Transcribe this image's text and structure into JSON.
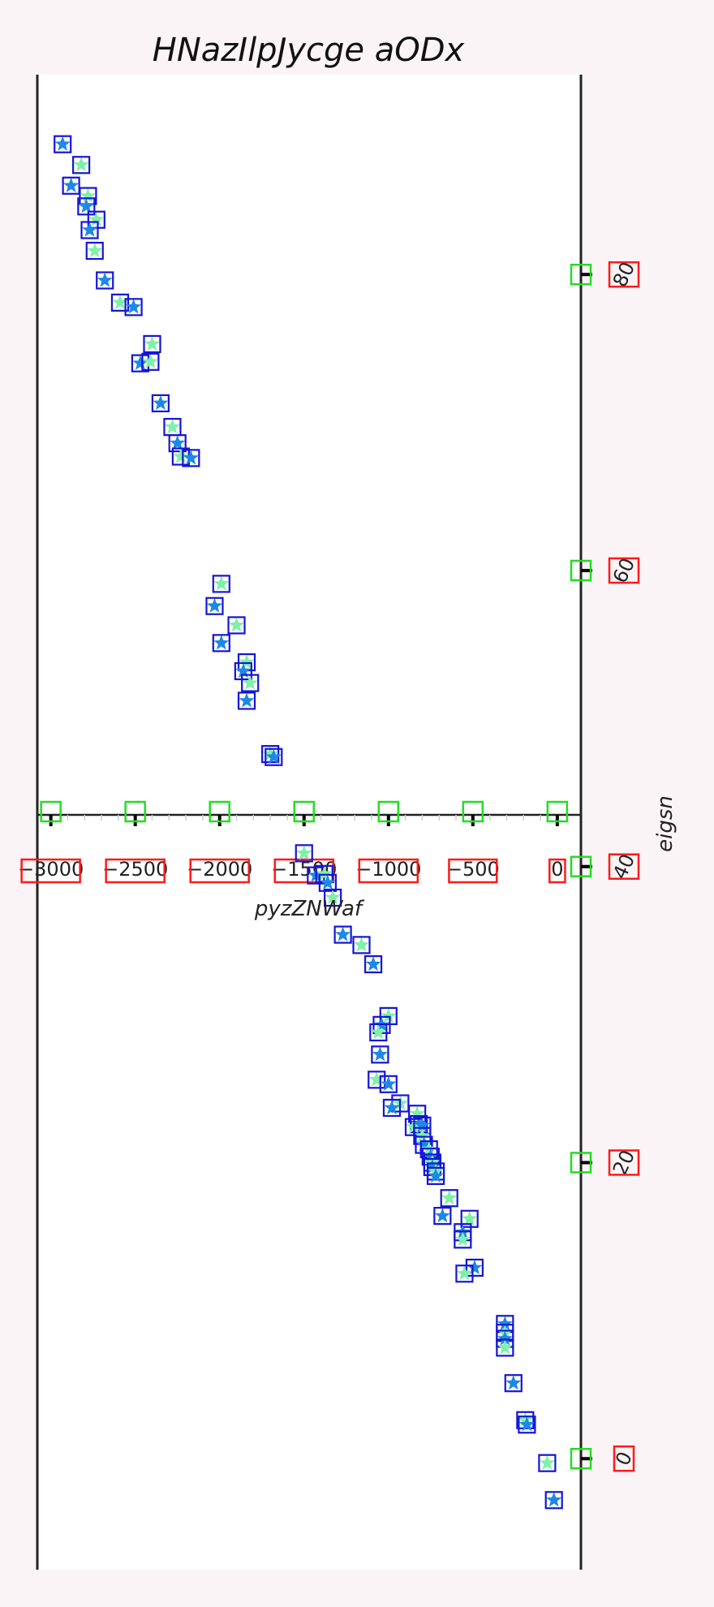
{
  "chart_data": {
    "type": "scatter",
    "title": "HNazIlpJycge aODx",
    "xlabel": "pyzZNWaf",
    "ylabel": "eigsn",
    "xlim": [
      -3080,
      140
    ],
    "ylim": [
      -7.5,
      93.5
    ],
    "x_ticks": [
      -3000,
      -2500,
      -2000,
      -1500,
      -1000,
      -500,
      0
    ],
    "x_tick_labels": [
      "−3000",
      "−2500",
      "−2000",
      "−1500",
      "−1000",
      "−500",
      "0"
    ],
    "y_ticks": [
      0,
      20,
      40,
      60,
      80
    ],
    "y_tick_labels": [
      "0",
      "20",
      "40",
      "60",
      "80"
    ],
    "grid": false,
    "colors": {
      "star_a": "#1e88e5",
      "star_b": "#7ff0a8",
      "box": "#1515d6",
      "ticks_box": "#22dd22",
      "label_box": "#ff1a1a"
    },
    "series": [
      {
        "values": [
          [
            -2930,
            88.8
          ],
          [
            -2820,
            87.4
          ],
          [
            -2880,
            86.0
          ],
          [
            -2780,
            85.3
          ],
          [
            -2790,
            84.6
          ],
          [
            -2730,
            83.7
          ],
          [
            -2770,
            83.0
          ],
          [
            -2740,
            81.6
          ],
          [
            -2680,
            79.6
          ],
          [
            -2590,
            78.1
          ],
          [
            -2510,
            77.8
          ],
          [
            -2400,
            75.3
          ],
          [
            -2470,
            74.0
          ],
          [
            -2410,
            74.1
          ],
          [
            -2350,
            71.3
          ],
          [
            -2280,
            69.7
          ],
          [
            -2250,
            68.6
          ],
          [
            -2230,
            67.7
          ],
          [
            -2170,
            67.6
          ],
          [
            -1990,
            59.1
          ],
          [
            -2030,
            57.6
          ],
          [
            -1900,
            56.3
          ],
          [
            -1990,
            55.1
          ],
          [
            -1840,
            53.8
          ],
          [
            -1860,
            53.2
          ],
          [
            -1820,
            52.4
          ],
          [
            -1840,
            51.2
          ],
          [
            -1700,
            47.6
          ],
          [
            -1680,
            47.4
          ],
          [
            -1500,
            40.9
          ],
          [
            -1430,
            39.4
          ],
          [
            -1380,
            39.5
          ],
          [
            -1360,
            38.9
          ],
          [
            -1330,
            37.9
          ],
          [
            -1270,
            35.4
          ],
          [
            -1160,
            34.7
          ],
          [
            -1090,
            33.4
          ],
          [
            -1000,
            29.9
          ],
          [
            -1040,
            29.3
          ],
          [
            -1060,
            28.8
          ],
          [
            -1050,
            27.3
          ],
          [
            -1070,
            25.6
          ],
          [
            -1000,
            25.3
          ],
          [
            -930,
            24.0
          ],
          [
            -980,
            23.7
          ],
          [
            -830,
            23.3
          ],
          [
            -820,
            22.6
          ],
          [
            -850,
            22.4
          ],
          [
            -800,
            22.5
          ],
          [
            -800,
            21.8
          ],
          [
            -790,
            21.2
          ],
          [
            -760,
            20.9
          ],
          [
            -750,
            20.4
          ],
          [
            -740,
            20.0
          ],
          [
            -740,
            19.7
          ],
          [
            -720,
            19.4
          ],
          [
            -720,
            19.1
          ],
          [
            -640,
            17.6
          ],
          [
            -680,
            16.4
          ],
          [
            -520,
            16.2
          ],
          [
            -560,
            15.3
          ],
          [
            -560,
            14.8
          ],
          [
            -490,
            12.9
          ],
          [
            -550,
            12.5
          ],
          [
            -310,
            9.1
          ],
          [
            -310,
            8.5
          ],
          [
            -310,
            8.1
          ],
          [
            -310,
            7.5
          ],
          [
            -260,
            5.1
          ],
          [
            -190,
            2.6
          ],
          [
            -180,
            2.3
          ],
          [
            -60,
            -0.3
          ],
          [
            -20,
            -2.8
          ]
        ]
      }
    ]
  }
}
